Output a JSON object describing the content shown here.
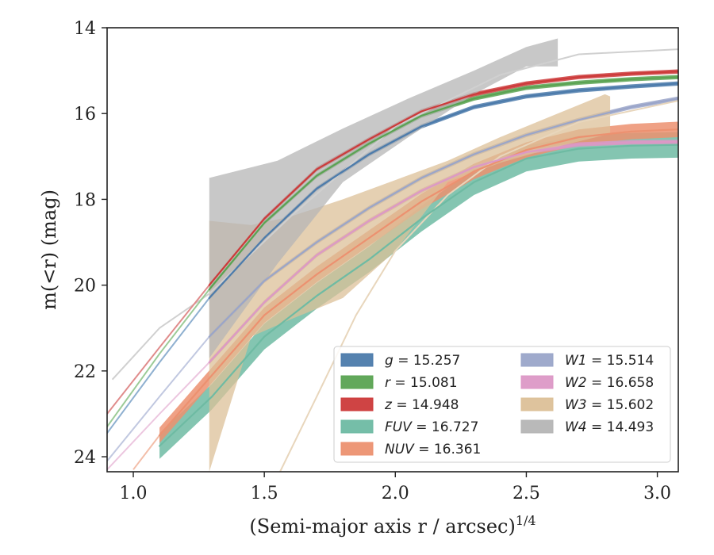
{
  "chart_data": {
    "type": "line",
    "title": "",
    "xlabel": "(Semi-major axis r / arcsec)",
    "xlabel_exponent": "1/4",
    "ylabel": "m(<r) (mag)",
    "xlim": [
      0.9,
      3.08
    ],
    "ylim": [
      24.35,
      14.0
    ],
    "y_inverted": true,
    "grid": false,
    "legend_placement": "lower-right",
    "x_ticks": [
      1.0,
      1.5,
      2.0,
      2.5,
      3.0
    ],
    "x_tick_labels": [
      "1.0",
      "1.5",
      "2.0",
      "2.5",
      "3.0"
    ],
    "y_ticks": [
      14,
      16,
      18,
      20,
      22,
      24
    ],
    "y_tick_labels": [
      "14",
      "16",
      "18",
      "20",
      "22",
      "24"
    ],
    "series": [
      {
        "name": "g",
        "value": "15.257",
        "color": "#4c7bab",
        "x": [
          1.29,
          1.5,
          1.7,
          1.9,
          2.1,
          2.3,
          2.5,
          2.7,
          2.9,
          3.08
        ],
        "y": [
          20.3,
          18.9,
          17.75,
          16.95,
          16.3,
          15.85,
          15.6,
          15.46,
          15.37,
          15.3
        ],
        "band_halfwidth": 0.05
      },
      {
        "name": "r",
        "value": "15.081",
        "color": "#5aa352",
        "x": [
          1.29,
          1.5,
          1.7,
          1.9,
          2.1,
          2.3,
          2.5,
          2.7,
          2.9,
          3.08
        ],
        "y": [
          20.1,
          18.55,
          17.45,
          16.7,
          16.05,
          15.65,
          15.4,
          15.28,
          15.2,
          15.15
        ],
        "band_halfwidth": 0.05
      },
      {
        "name": "z",
        "value": "14.948",
        "color": "#cc3a3a",
        "x": [
          1.29,
          1.5,
          1.7,
          1.9,
          2.1,
          2.3,
          2.5,
          2.7,
          2.9,
          3.08
        ],
        "y": [
          20.0,
          18.45,
          17.3,
          16.6,
          15.95,
          15.55,
          15.3,
          15.15,
          15.07,
          15.02
        ],
        "band_halfwidth": 0.05
      },
      {
        "name": "FUV",
        "value": "16.727",
        "color": "#6ebba3",
        "x": [
          1.1,
          1.3,
          1.5,
          1.7,
          1.9,
          2.1,
          2.3,
          2.5,
          2.7,
          2.9,
          3.08
        ],
        "y": [
          23.75,
          22.6,
          21.2,
          20.25,
          19.4,
          18.45,
          17.6,
          17.05,
          16.82,
          16.75,
          16.73
        ],
        "band_halfwidth": 0.3
      },
      {
        "name": "NUV",
        "value": "16.361",
        "color": "#ec9170",
        "x": [
          1.1,
          1.3,
          1.5,
          1.7,
          1.9,
          2.1,
          2.3,
          2.5,
          2.7,
          2.9,
          3.08
        ],
        "y": [
          23.5,
          22.1,
          20.7,
          19.75,
          18.9,
          18.05,
          17.35,
          16.85,
          16.55,
          16.42,
          16.37
        ],
        "band_halfwidth": 0.18
      },
      {
        "name": "W1",
        "value": "15.514",
        "color": "#9aa5c9",
        "x": [
          1.29,
          1.5,
          1.7,
          1.9,
          2.1,
          2.3,
          2.5,
          2.7,
          2.9,
          3.08
        ],
        "y": [
          21.2,
          19.9,
          19.0,
          18.2,
          17.5,
          16.95,
          16.5,
          16.15,
          15.85,
          15.65
        ],
        "band_halfwidth": 0.05
      },
      {
        "name": "W2",
        "value": "16.658",
        "color": "#dc98c6",
        "x": [
          1.29,
          1.5,
          1.7,
          1.9,
          2.1,
          2.3,
          2.5,
          2.7,
          2.9,
          3.08
        ],
        "y": [
          21.8,
          20.4,
          19.3,
          18.5,
          17.8,
          17.25,
          16.9,
          16.72,
          16.67,
          16.66
        ],
        "band_halfwidth": 0.05
      },
      {
        "name": "W3",
        "value": "15.602",
        "color": "#dcc098",
        "x": [
          1.29,
          1.45,
          1.6,
          1.8,
          2.0,
          2.2,
          2.4,
          2.6,
          2.8,
          2.82
        ],
        "y": [
          20.8,
          19.4,
          18.8,
          18.35,
          17.9,
          17.4,
          16.95,
          16.55,
          16.1,
          16.05
        ],
        "band_lower": [
          24.35,
          21.2,
          20.8,
          20.3,
          19.2,
          17.6,
          17.15,
          16.8,
          16.5,
          16.45
        ],
        "band_upper": [
          18.5,
          18.6,
          18.4,
          18.0,
          17.55,
          17.1,
          16.55,
          16.05,
          15.55,
          15.6
        ]
      },
      {
        "name": "W4",
        "value": "14.493",
        "color": "#b5b5b5",
        "x": [
          1.29,
          1.55,
          1.8,
          2.05,
          2.3,
          2.5,
          2.62
        ],
        "y": [
          19.5,
          17.9,
          17.0,
          16.1,
          15.35,
          14.85,
          14.75
        ],
        "band_lower": [
          21.7,
          19.5,
          17.6,
          16.55,
          15.55,
          14.9,
          14.9
        ],
        "band_upper": [
          17.5,
          17.1,
          16.35,
          15.65,
          15.0,
          14.45,
          14.25
        ]
      }
    ],
    "extrapolation_lines": [
      {
        "name": "W4",
        "color": "#d0d0d0",
        "x": [
          0.92,
          1.1,
          1.29,
          1.6,
          2.0,
          2.4,
          2.7,
          3.08
        ],
        "y": [
          22.2,
          21.0,
          20.2,
          18.4,
          16.3,
          15.1,
          14.62,
          14.5
        ]
      },
      {
        "name": "W3",
        "color": "#e8d6bc",
        "x": [
          1.56,
          1.7,
          1.85,
          2.0,
          2.2,
          2.4,
          2.7,
          3.08
        ],
        "y": [
          24.35,
          22.6,
          20.7,
          19.2,
          17.9,
          17.0,
          16.2,
          15.7
        ]
      },
      {
        "name": "g",
        "color": "#8fb0d0",
        "x": [
          0.9,
          1.1,
          1.29
        ],
        "y": [
          23.45,
          21.8,
          20.3
        ]
      },
      {
        "name": "r",
        "color": "#9ccb97",
        "x": [
          0.9,
          1.1,
          1.29
        ],
        "y": [
          23.3,
          21.6,
          20.1
        ]
      },
      {
        "name": "z",
        "color": "#e08c8c",
        "x": [
          0.9,
          1.1,
          1.29
        ],
        "y": [
          23.0,
          21.45,
          20.0
        ]
      },
      {
        "name": "W1",
        "color": "#c1c8e0",
        "x": [
          0.9,
          1.1,
          1.29
        ],
        "y": [
          24.1,
          22.6,
          21.2
        ]
      },
      {
        "name": "W2",
        "color": "#ecc6df",
        "x": [
          0.9,
          1.1,
          1.29
        ],
        "y": [
          24.3,
          23.0,
          21.8
        ]
      },
      {
        "name": "NUV",
        "color": "#f3bea9",
        "x": [
          1.0,
          1.1
        ],
        "y": [
          24.3,
          23.5
        ]
      }
    ],
    "legend": {
      "columns": [
        [
          "g",
          "r",
          "z",
          "FUV",
          "NUV"
        ],
        [
          "W1",
          "W2",
          "W3",
          "W4"
        ]
      ]
    }
  }
}
